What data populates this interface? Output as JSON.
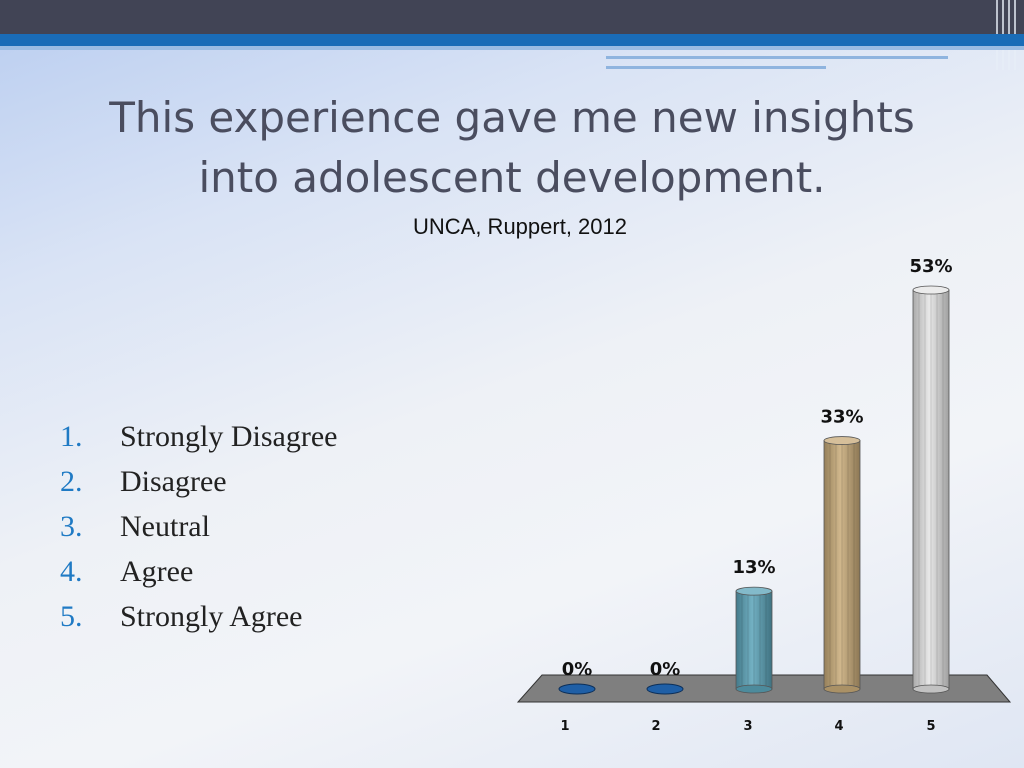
{
  "slide": {
    "title_line1": "This experience gave me new insights",
    "title_line2": "into adolescent development.",
    "subtitle": "UNCA, Ruppert, 2012",
    "options": [
      {
        "num": "1.",
        "label": "Strongly Disagree"
      },
      {
        "num": "2.",
        "label": "Disagree"
      },
      {
        "num": "3.",
        "label": "Neutral"
      },
      {
        "num": "4.",
        "label": "Agree"
      },
      {
        "num": "5.",
        "label": "Strongly Agree"
      }
    ]
  },
  "colors": {
    "header_dark": "#414455",
    "header_blue": "#1a6cb7",
    "list_number": "#1f7ac4",
    "floor": "#7f7f7f"
  },
  "chart_data": {
    "type": "bar",
    "categories": [
      "1",
      "2",
      "3",
      "4",
      "5"
    ],
    "values": [
      0,
      0,
      13,
      33,
      53
    ],
    "value_labels": [
      "0%",
      "0%",
      "13%",
      "33%",
      "53%"
    ],
    "bar_colors": [
      "#1f5fa6",
      "#1f5fa6",
      "#5aa3b8",
      "#c8aa78",
      "#e4e4e4"
    ],
    "ylim": [
      0,
      53
    ],
    "grid": false,
    "legend": "none"
  }
}
